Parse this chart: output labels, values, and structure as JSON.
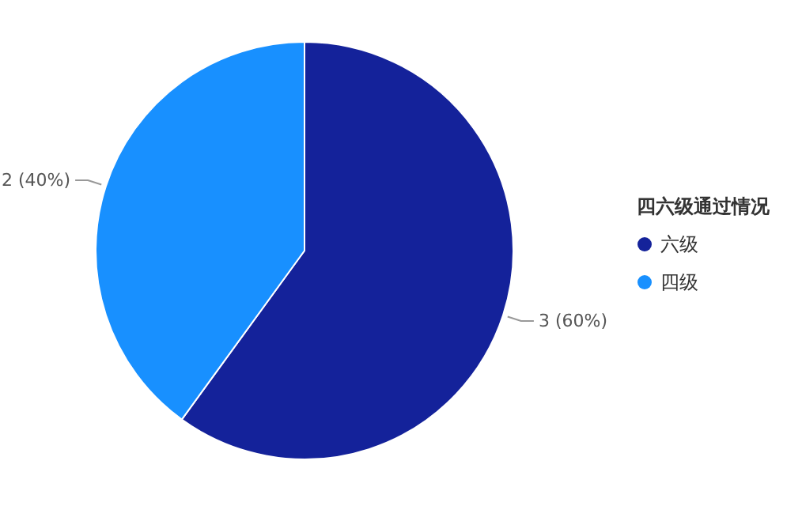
{
  "chart_data": {
    "type": "pie",
    "legend_title": "四六级通过情况",
    "legend": "right",
    "categories": [
      "六级",
      "四级"
    ],
    "values": [
      3,
      2
    ],
    "colors": [
      "#14229a",
      "#1890ff"
    ],
    "value_labels": [
      "3 (60%)",
      "2 (40%)"
    ]
  }
}
